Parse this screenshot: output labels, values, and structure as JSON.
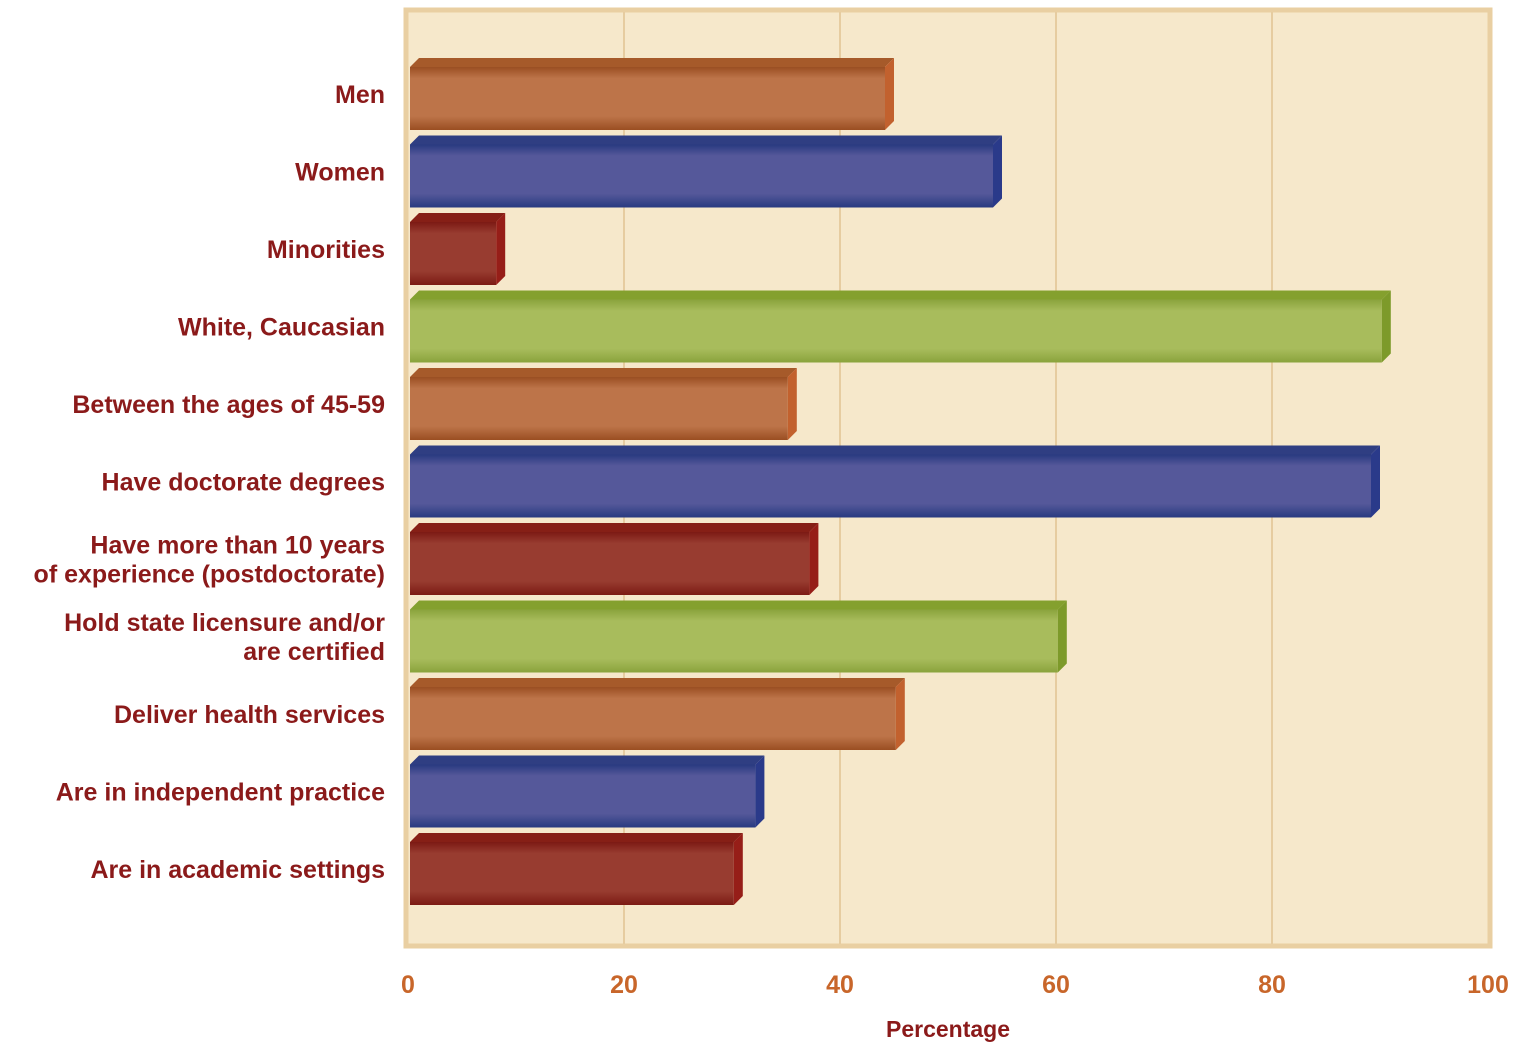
{
  "chart_data": {
    "type": "bar",
    "orientation": "horizontal",
    "categories": [
      [
        "Men"
      ],
      [
        "Women"
      ],
      [
        "Minorities"
      ],
      [
        "White, Caucasian"
      ],
      [
        "Between the ages of 45-59"
      ],
      [
        "Have doctorate degrees"
      ],
      [
        "Have more than 10 years",
        "of experience (postdoctorate)"
      ],
      [
        "Hold state licensure and/or",
        "are certified"
      ],
      [
        "Deliver health services"
      ],
      [
        "Are in independent practice"
      ],
      [
        "Are in academic settings"
      ]
    ],
    "values": [
      45,
      55,
      9,
      91,
      36,
      90,
      38,
      61,
      46,
      33,
      31
    ],
    "bar_colors": [
      "orange",
      "blue",
      "red",
      "green",
      "orange",
      "blue",
      "red",
      "green",
      "orange",
      "blue",
      "red"
    ],
    "xlabel": "Percentage",
    "ylabel": "",
    "xlim": [
      0,
      100
    ],
    "xticks": [
      "0",
      "20",
      "40",
      "60",
      "80",
      "100"
    ],
    "grid": "vertical",
    "legend": "none"
  },
  "colors": {
    "plot_background": "#f6e8cb",
    "plot_border": "#e9cfa2",
    "gridline": "#e6cca0",
    "label_text": "#8b1a1a",
    "tick_text": "#c8662a",
    "orange": {
      "light": "#bd7449",
      "dark": "#9a4e22",
      "top": "#a65a2a",
      "side": "#c2612e"
    },
    "blue": {
      "light": "#55589a",
      "dark": "#283a80",
      "top": "#2f3e82",
      "side": "#2a3a8a"
    },
    "red": {
      "light": "#983c30",
      "dark": "#7c1a14",
      "top": "#861f16",
      "side": "#961e18"
    },
    "green": {
      "light": "#a8bc5c",
      "dark": "#8aa33c",
      "top": "#84a02e",
      "side": "#7d9a2a"
    }
  }
}
